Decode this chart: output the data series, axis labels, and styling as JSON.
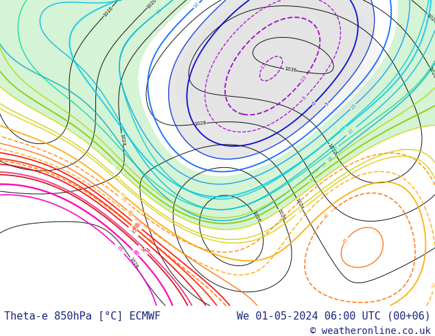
{
  "title_left": "Theta-e 850hPa [°C] ECMWF",
  "title_right": "We 01-05-2024 06:00 UTC (00+06)",
  "copyright": "© weatheronline.co.uk",
  "bg_color": "#ffffff",
  "map_bg": "#ffffff",
  "footer_text_color": "#1a237e",
  "footer_fontsize": 11,
  "fig_width": 6.34,
  "fig_height": 4.9,
  "dpi": 100
}
